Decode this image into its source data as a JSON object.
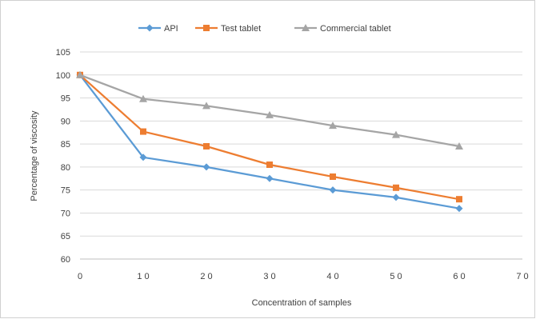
{
  "chart_data": {
    "type": "line",
    "title": "",
    "xlabel": "Concentration of samples",
    "ylabel": "Percentage of viscosity",
    "xlim": [
      0,
      70
    ],
    "ylim": [
      60,
      105
    ],
    "x_ticks": [
      0,
      10,
      20,
      30,
      40,
      50,
      60,
      70
    ],
    "x_tick_labels": [
      "0",
      "1 0",
      "2 0",
      "3 0",
      "4 0",
      "5 0",
      "6 0",
      "7 0"
    ],
    "y_ticks": [
      60,
      65,
      70,
      75,
      80,
      85,
      90,
      95,
      100,
      105
    ],
    "y_tick_labels": [
      "60",
      "65",
      "70",
      "75",
      "80",
      "85",
      "90",
      "95",
      "100",
      "105"
    ],
    "x": [
      0,
      10,
      20,
      30,
      40,
      50,
      60
    ],
    "series": [
      {
        "name": "API",
        "color": "#5b9bd5",
        "marker": "diamond",
        "values": [
          100,
          82.1,
          80.0,
          77.5,
          75.0,
          73.4,
          71.0
        ]
      },
      {
        "name": "Test tablet",
        "color": "#ed7d31",
        "marker": "square",
        "values": [
          100,
          87.7,
          84.5,
          80.5,
          77.9,
          75.5,
          73.0
        ]
      },
      {
        "name": "Commercial tablet",
        "color": "#a5a5a5",
        "marker": "triangle",
        "values": [
          100,
          94.8,
          93.3,
          91.3,
          89.0,
          87.0,
          84.5
        ]
      }
    ],
    "grid": "horizontal",
    "legend_position": "top"
  }
}
